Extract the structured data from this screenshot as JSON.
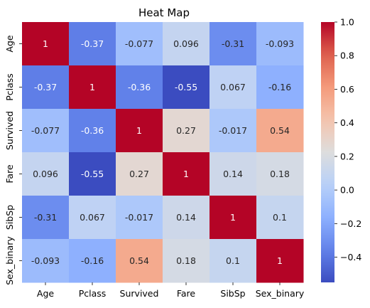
{
  "chart_data": {
    "type": "heatmap",
    "title": "Heat Map",
    "xlabel": "",
    "ylabel": "",
    "x_categories": [
      "Age",
      "Pclass",
      "Survived",
      "Fare",
      "SibSp",
      "Sex_binary"
    ],
    "y_categories": [
      "Age",
      "Pclass",
      "Survived",
      "Fare",
      "SibSp",
      "Sex_binary"
    ],
    "values": [
      [
        1,
        -0.37,
        -0.077,
        0.096,
        -0.31,
        -0.093
      ],
      [
        -0.37,
        1,
        -0.36,
        -0.55,
        0.067,
        -0.16
      ],
      [
        -0.077,
        -0.36,
        1,
        0.27,
        -0.017,
        0.54
      ],
      [
        0.096,
        -0.55,
        0.27,
        1,
        0.14,
        0.18
      ],
      [
        -0.31,
        0.067,
        -0.017,
        0.14,
        1,
        0.1
      ],
      [
        -0.093,
        -0.16,
        0.54,
        0.18,
        0.1,
        1
      ]
    ],
    "cell_labels": [
      [
        "1",
        "-0.37",
        "-0.077",
        "0.096",
        "-0.31",
        "-0.093"
      ],
      [
        "-0.37",
        "1",
        "-0.36",
        "-0.55",
        "0.067",
        "-0.16"
      ],
      [
        "-0.077",
        "-0.36",
        "1",
        "0.27",
        "-0.017",
        "0.54"
      ],
      [
        "0.096",
        "-0.55",
        "0.27",
        "1",
        "0.14",
        "0.18"
      ],
      [
        "-0.31",
        "0.067",
        "-0.017",
        "0.14",
        "1",
        "0.1"
      ],
      [
        "-0.093",
        "-0.16",
        "0.54",
        "0.18",
        "0.1",
        "1"
      ]
    ],
    "colormap": "coolwarm",
    "colorbar": {
      "range": [
        -0.55,
        1.0
      ],
      "ticks": [
        -0.4,
        -0.2,
        0.0,
        0.2,
        0.4,
        0.6,
        0.8,
        1.0
      ],
      "tick_labels": [
        "−0.4",
        "−0.2",
        "0.0",
        "0.2",
        "0.4",
        "0.6",
        "0.8",
        "1.0"
      ]
    },
    "grid": false,
    "legend": "colorbar-right"
  }
}
